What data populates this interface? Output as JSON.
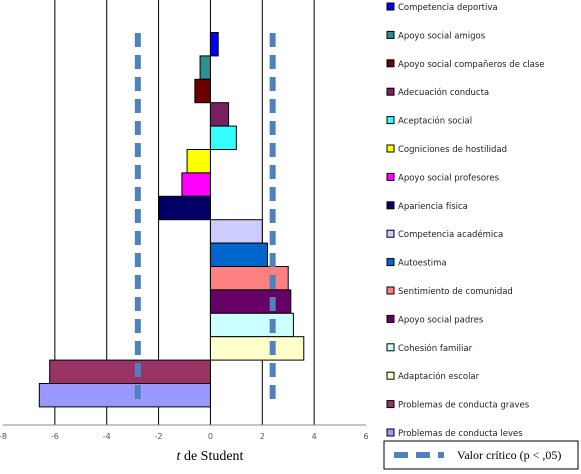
{
  "chart_data": {
    "type": "bar",
    "orientation": "horizontal",
    "categories": [
      "Competencia deportiva",
      "Apoyo social amigos",
      "Apoyo social compañeros de clase",
      "Adecuación conducta",
      "Aceptación social",
      "Cogniciones de hostilidad",
      "Apoyo social profesores",
      "Apariencia física",
      "Competencia académica",
      "Autoestima",
      "Sentimiento de comunidad",
      "Apoyo social padres",
      "Cohesión familiar",
      "Adaptación escolar",
      "Problemas de conducta graves",
      "Problemas de conducta leves"
    ],
    "values": [
      0.3,
      -0.4,
      -0.6,
      0.7,
      1.0,
      -0.9,
      -1.1,
      -2.0,
      2.0,
      2.2,
      3.0,
      3.1,
      3.2,
      3.6,
      -6.2,
      -6.6
    ],
    "colors": [
      "#0000ff",
      "#2f8f8f",
      "#6b0000",
      "#7a2060",
      "#33ffff",
      "#ffff00",
      "#ff00ff",
      "#000066",
      "#ccccff",
      "#0066cc",
      "#ff8080",
      "#660066",
      "#ccffff",
      "#ffffcc",
      "#993366",
      "#9999ff"
    ],
    "xlim": [
      -8,
      6
    ],
    "xticks": [
      "-8",
      "-6",
      "-4",
      "-2",
      "0",
      "2",
      "4",
      "6"
    ],
    "xlabel_italic": "t",
    "xlabel_rest": " de Student",
    "critical_values": [
      -2.8,
      2.4
    ],
    "critical_label": "Valor crítico (p < ,05)",
    "critical_color": "#4f81bd",
    "grid": true
  }
}
